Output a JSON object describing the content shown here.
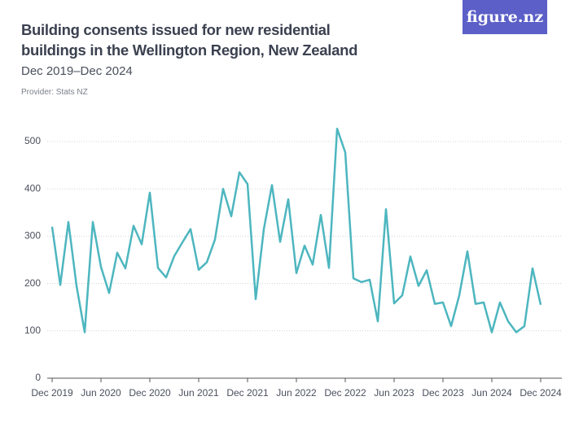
{
  "logo": "figure.nz",
  "chart_data": {
    "type": "line",
    "title": "Building consents issued for new residential buildings in the Wellington Region, New Zealand",
    "subtitle": "Dec 2019–Dec 2024",
    "provider": "Provider: Stats NZ",
    "categories": [
      "Dec 2019",
      null,
      null,
      null,
      null,
      null,
      "Jun 2020",
      null,
      null,
      null,
      null,
      null,
      "Dec 2020",
      null,
      null,
      null,
      null,
      null,
      "Jun 2021",
      null,
      null,
      null,
      null,
      null,
      "Dec 2021",
      null,
      null,
      null,
      null,
      null,
      "Jun 2022",
      null,
      null,
      null,
      null,
      null,
      "Dec 2022",
      null,
      null,
      null,
      null,
      null,
      "Jun 2023",
      null,
      null,
      null,
      null,
      null,
      "Dec 2023",
      null,
      null,
      null,
      null,
      null,
      "Jun 2024",
      null,
      null,
      null,
      null,
      null,
      "Dec 2024"
    ],
    "values": [
      320,
      197,
      330,
      195,
      97,
      330,
      235,
      180,
      265,
      232,
      322,
      283,
      392,
      233,
      213,
      258,
      287,
      315,
      229,
      245,
      293,
      400,
      342,
      435,
      410,
      167,
      315,
      408,
      288,
      378,
      222,
      280,
      240,
      345,
      233,
      527,
      477,
      211,
      203,
      208,
      120,
      357,
      158,
      175,
      257,
      195,
      228,
      157,
      160,
      110,
      175,
      268,
      157,
      160,
      97,
      160,
      120,
      97,
      110,
      232,
      155
    ],
    "color": "#4db6bf",
    "ylim": [
      0,
      535
    ],
    "yticks": [
      0,
      100,
      200,
      300,
      400,
      500
    ],
    "grid": true
  }
}
